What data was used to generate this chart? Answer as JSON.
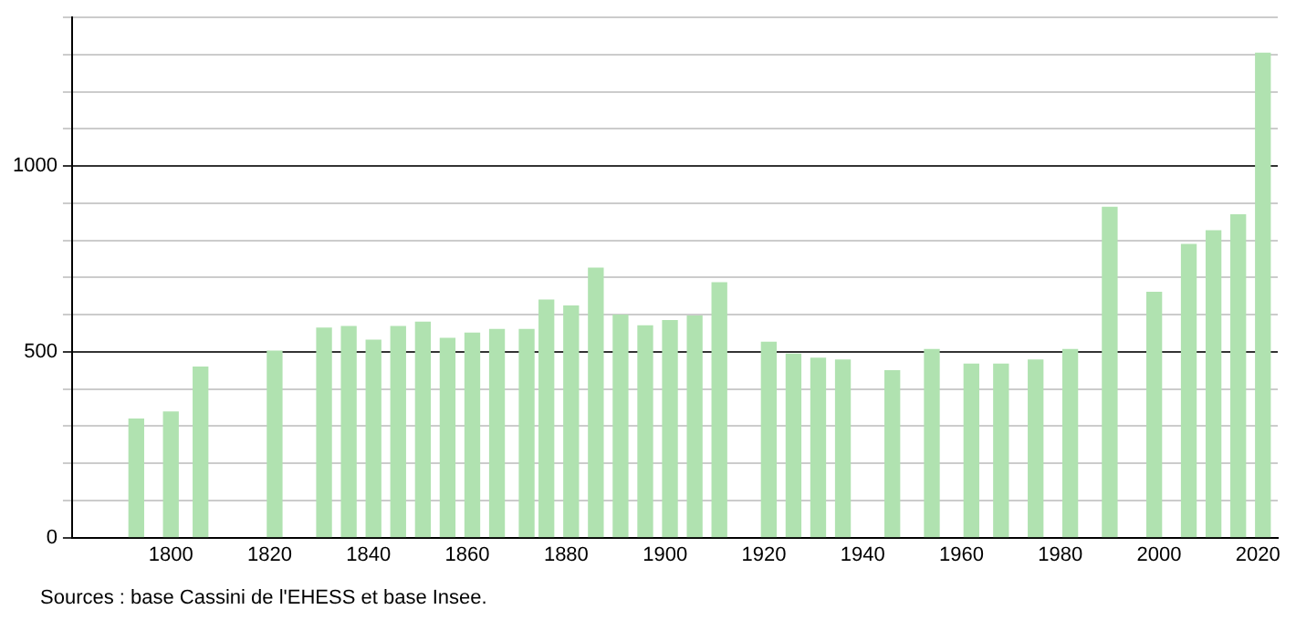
{
  "chart_data": {
    "type": "bar",
    "x": [
      1793,
      1800,
      1806,
      1821,
      1831,
      1836,
      1841,
      1846,
      1851,
      1856,
      1861,
      1866,
      1872,
      1876,
      1881,
      1886,
      1891,
      1896,
      1901,
      1906,
      1911,
      1921,
      1926,
      1931,
      1936,
      1946,
      1954,
      1962,
      1968,
      1975,
      1982,
      1990,
      1999,
      2006,
      2011,
      2016,
      2021
    ],
    "values": [
      319,
      338,
      459,
      502,
      564,
      568,
      531,
      568,
      580,
      536,
      550,
      560,
      560,
      639,
      623,
      725,
      599,
      570,
      584,
      596,
      686,
      526,
      494,
      483,
      478,
      449,
      506,
      467,
      467,
      478,
      506,
      889,
      660,
      789,
      826,
      869,
      1304
    ],
    "color": "#b0e2b0",
    "xlim": [
      1780,
      2024
    ],
    "xticks": [
      1800,
      1820,
      1840,
      1860,
      1880,
      1900,
      1920,
      1940,
      1960,
      1980,
      2000,
      2020
    ],
    "ylim": [
      0,
      1400
    ],
    "yticks": [
      0,
      {
        "value": 100,
        "label": null
      },
      {
        "value": 200,
        "label": null
      },
      {
        "value": 300,
        "label": null
      },
      {
        "value": 400,
        "label": null
      },
      500,
      {
        "value": 600,
        "label": null
      },
      {
        "value": 700,
        "label": null
      },
      {
        "value": 800,
        "label": null
      },
      {
        "value": 900,
        "label": null
      },
      1000,
      {
        "value": 1100,
        "label": null
      },
      {
        "value": 1200,
        "label": null
      },
      {
        "value": 1300,
        "label": null
      },
      {
        "value": 1400,
        "label": null
      }
    ],
    "grid": "y",
    "annotations": [
      "Sources : base Cassini de l'EHESS et base Insee."
    ]
  }
}
